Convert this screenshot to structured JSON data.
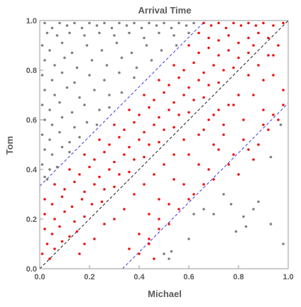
{
  "chart_data": {
    "type": "scatter",
    "title": "Arrival Time",
    "xlabel": "Michael",
    "ylabel": "Tom",
    "xlim": [
      0,
      1
    ],
    "ylim": [
      0,
      1
    ],
    "x_ticks": [
      "0.0",
      "0.2",
      "0.4",
      "0.6",
      "0.8",
      "1.0"
    ],
    "y_ticks": [
      "0.0",
      "0.2",
      "0.4",
      "0.6",
      "0.8",
      "1.0"
    ],
    "grid": false,
    "legend": "none",
    "colors": {
      "gray_points": "#7f7f7f",
      "red_points": "#ee1111",
      "diagonal_line": "#000000",
      "offset_lines": "#2a2ae0",
      "frame": "#999999",
      "text": "#5a5a5a"
    },
    "lines": [
      {
        "style": "dashed",
        "color": "black",
        "x": [
          0,
          1
        ],
        "y": [
          0,
          1
        ]
      },
      {
        "style": "dashed",
        "color": "blue",
        "x": [
          0,
          0.667
        ],
        "y": [
          0.333,
          1
        ]
      },
      {
        "style": "dashed",
        "color": "blue",
        "x": [
          0.333,
          1
        ],
        "y": [
          0,
          0.667
        ]
      }
    ],
    "series": [
      {
        "color": "gray",
        "points": [
          [
            0.02,
            0.99
          ],
          [
            0.05,
            0.97
          ],
          [
            0.08,
            0.99
          ],
          [
            0.11,
            0.98
          ],
          [
            0.14,
            0.99
          ],
          [
            0.17,
            0.97
          ],
          [
            0.2,
            0.99
          ],
          [
            0.23,
            0.98
          ],
          [
            0.26,
            0.99
          ],
          [
            0.29,
            0.97
          ],
          [
            0.32,
            0.99
          ],
          [
            0.35,
            0.98
          ],
          [
            0.38,
            0.99
          ],
          [
            0.41,
            0.97
          ],
          [
            0.44,
            0.99
          ],
          [
            0.47,
            0.98
          ],
          [
            0.5,
            0.99
          ],
          [
            0.53,
            0.97
          ],
          [
            0.56,
            0.99
          ],
          [
            0.59,
            0.98
          ],
          [
            0.62,
            0.99
          ],
          [
            0.03,
            0.95
          ],
          [
            0.07,
            0.94
          ],
          [
            0.12,
            0.95
          ],
          [
            0.18,
            0.94
          ],
          [
            0.24,
            0.95
          ],
          [
            0.3,
            0.94
          ],
          [
            0.36,
            0.95
          ],
          [
            0.42,
            0.93
          ],
          [
            0.48,
            0.95
          ],
          [
            0.54,
            0.94
          ],
          [
            0.6,
            0.95
          ],
          [
            0.01,
            0.9
          ],
          [
            0.04,
            0.88
          ],
          [
            0.09,
            0.91
          ],
          [
            0.13,
            0.87
          ],
          [
            0.19,
            0.9
          ],
          [
            0.25,
            0.88
          ],
          [
            0.31,
            0.91
          ],
          [
            0.37,
            0.87
          ],
          [
            0.43,
            0.9
          ],
          [
            0.49,
            0.88
          ],
          [
            0.55,
            0.9
          ],
          [
            0.02,
            0.84
          ],
          [
            0.06,
            0.82
          ],
          [
            0.1,
            0.85
          ],
          [
            0.15,
            0.81
          ],
          [
            0.21,
            0.84
          ],
          [
            0.27,
            0.82
          ],
          [
            0.33,
            0.85
          ],
          [
            0.39,
            0.81
          ],
          [
            0.45,
            0.84
          ],
          [
            0.01,
            0.78
          ],
          [
            0.05,
            0.76
          ],
          [
            0.09,
            0.79
          ],
          [
            0.14,
            0.75
          ],
          [
            0.2,
            0.78
          ],
          [
            0.26,
            0.76
          ],
          [
            0.32,
            0.79
          ],
          [
            0.38,
            0.77
          ],
          [
            0.02,
            0.72
          ],
          [
            0.06,
            0.7
          ],
          [
            0.11,
            0.73
          ],
          [
            0.16,
            0.69
          ],
          [
            0.22,
            0.72
          ],
          [
            0.28,
            0.7
          ],
          [
            0.33,
            0.71
          ],
          [
            0.01,
            0.66
          ],
          [
            0.04,
            0.64
          ],
          [
            0.08,
            0.67
          ],
          [
            0.13,
            0.63
          ],
          [
            0.18,
            0.66
          ],
          [
            0.24,
            0.64
          ],
          [
            0.28,
            0.65
          ],
          [
            0.02,
            0.6
          ],
          [
            0.05,
            0.58
          ],
          [
            0.09,
            0.61
          ],
          [
            0.14,
            0.57
          ],
          [
            0.19,
            0.59
          ],
          [
            0.23,
            0.58
          ],
          [
            0.01,
            0.54
          ],
          [
            0.04,
            0.52
          ],
          [
            0.08,
            0.55
          ],
          [
            0.12,
            0.51
          ],
          [
            0.16,
            0.53
          ],
          [
            0.02,
            0.48
          ],
          [
            0.05,
            0.46
          ],
          [
            0.09,
            0.49
          ],
          [
            0.12,
            0.47
          ],
          [
            0.01,
            0.42
          ],
          [
            0.04,
            0.4
          ],
          [
            0.07,
            0.41
          ],
          [
            0.02,
            0.37
          ],
          [
            0.03,
            0.36
          ],
          [
            0.52,
            0.04
          ],
          [
            0.53,
            0.07
          ],
          [
            0.5,
            0.06
          ],
          [
            0.6,
            0.12
          ],
          [
            0.62,
            0.22
          ],
          [
            0.66,
            0.24
          ],
          [
            0.7,
            0.22
          ],
          [
            0.74,
            0.3
          ],
          [
            0.77,
            0.26
          ],
          [
            0.82,
            0.21
          ],
          [
            0.79,
            0.15
          ],
          [
            0.83,
            0.17
          ],
          [
            0.86,
            0.24
          ],
          [
            0.93,
            0.18
          ],
          [
            0.93,
            0.45
          ],
          [
            0.97,
            0.58
          ],
          [
            0.98,
            0.1
          ],
          [
            0.88,
            0.27
          ]
        ]
      },
      {
        "color": "red",
        "points": [
          [
            0.66,
            0.99
          ],
          [
            0.69,
            0.98
          ],
          [
            0.72,
            0.99
          ],
          [
            0.75,
            0.97
          ],
          [
            0.78,
            0.99
          ],
          [
            0.81,
            0.98
          ],
          [
            0.84,
            0.99
          ],
          [
            0.87,
            0.98
          ],
          [
            0.9,
            0.99
          ],
          [
            0.94,
            0.98
          ],
          [
            0.98,
            0.99
          ],
          [
            0.64,
            0.95
          ],
          [
            0.68,
            0.93
          ],
          [
            0.72,
            0.92
          ],
          [
            0.76,
            0.94
          ],
          [
            0.8,
            0.91
          ],
          [
            0.84,
            0.93
          ],
          [
            0.88,
            0.95
          ],
          [
            0.92,
            0.93
          ],
          [
            0.6,
            0.9
          ],
          [
            0.64,
            0.87
          ],
          [
            0.68,
            0.89
          ],
          [
            0.72,
            0.86
          ],
          [
            0.76,
            0.88
          ],
          [
            0.8,
            0.85
          ],
          [
            0.84,
            0.87
          ],
          [
            0.54,
            0.82
          ],
          [
            0.58,
            0.8
          ],
          [
            0.62,
            0.83
          ],
          [
            0.66,
            0.79
          ],
          [
            0.7,
            0.82
          ],
          [
            0.74,
            0.8
          ],
          [
            0.78,
            0.81
          ],
          [
            0.48,
            0.76
          ],
          [
            0.52,
            0.74
          ],
          [
            0.56,
            0.77
          ],
          [
            0.6,
            0.73
          ],
          [
            0.64,
            0.76
          ],
          [
            0.68,
            0.74
          ],
          [
            0.72,
            0.75
          ],
          [
            0.42,
            0.7
          ],
          [
            0.46,
            0.68
          ],
          [
            0.5,
            0.71
          ],
          [
            0.54,
            0.67
          ],
          [
            0.58,
            0.7
          ],
          [
            0.62,
            0.68
          ],
          [
            0.66,
            0.69
          ],
          [
            0.36,
            0.64
          ],
          [
            0.4,
            0.62
          ],
          [
            0.44,
            0.65
          ],
          [
            0.48,
            0.61
          ],
          [
            0.52,
            0.64
          ],
          [
            0.56,
            0.62
          ],
          [
            0.6,
            0.63
          ],
          [
            0.3,
            0.58
          ],
          [
            0.34,
            0.56
          ],
          [
            0.38,
            0.59
          ],
          [
            0.42,
            0.55
          ],
          [
            0.46,
            0.58
          ],
          [
            0.5,
            0.56
          ],
          [
            0.54,
            0.57
          ],
          [
            0.24,
            0.52
          ],
          [
            0.28,
            0.5
          ],
          [
            0.32,
            0.53
          ],
          [
            0.36,
            0.49
          ],
          [
            0.4,
            0.52
          ],
          [
            0.44,
            0.5
          ],
          [
            0.48,
            0.51
          ],
          [
            0.18,
            0.46
          ],
          [
            0.22,
            0.44
          ],
          [
            0.26,
            0.47
          ],
          [
            0.3,
            0.43
          ],
          [
            0.34,
            0.46
          ],
          [
            0.38,
            0.44
          ],
          [
            0.42,
            0.45
          ],
          [
            0.12,
            0.4
          ],
          [
            0.16,
            0.38
          ],
          [
            0.2,
            0.41
          ],
          [
            0.24,
            0.37
          ],
          [
            0.28,
            0.4
          ],
          [
            0.32,
            0.38
          ],
          [
            0.36,
            0.39
          ],
          [
            0.06,
            0.34
          ],
          [
            0.1,
            0.32
          ],
          [
            0.14,
            0.35
          ],
          [
            0.18,
            0.31
          ],
          [
            0.22,
            0.34
          ],
          [
            0.26,
            0.32
          ],
          [
            0.3,
            0.33
          ],
          [
            0.02,
            0.28
          ],
          [
            0.05,
            0.26
          ],
          [
            0.09,
            0.29
          ],
          [
            0.13,
            0.25
          ],
          [
            0.17,
            0.28
          ],
          [
            0.21,
            0.26
          ],
          [
            0.25,
            0.27
          ],
          [
            0.02,
            0.22
          ],
          [
            0.06,
            0.2
          ],
          [
            0.1,
            0.23
          ],
          [
            0.14,
            0.19
          ],
          [
            0.18,
            0.21
          ],
          [
            0.02,
            0.16
          ],
          [
            0.05,
            0.14
          ],
          [
            0.08,
            0.17
          ],
          [
            0.12,
            0.13
          ],
          [
            0.15,
            0.15
          ],
          [
            0.03,
            0.1
          ],
          [
            0.06,
            0.08
          ],
          [
            0.09,
            0.11
          ],
          [
            0.01,
            0.06
          ],
          [
            0.04,
            0.04
          ],
          [
            0.7,
            0.62
          ],
          [
            0.74,
            0.58
          ],
          [
            0.78,
            0.66
          ],
          [
            0.82,
            0.6
          ],
          [
            0.86,
            0.7
          ],
          [
            0.9,
            0.64
          ],
          [
            0.94,
            0.78
          ],
          [
            0.98,
            0.72
          ],
          [
            0.66,
            0.56
          ],
          [
            0.7,
            0.5
          ],
          [
            0.74,
            0.54
          ],
          [
            0.78,
            0.46
          ],
          [
            0.82,
            0.52
          ],
          [
            0.86,
            0.44
          ],
          [
            0.9,
            0.58
          ],
          [
            0.94,
            0.62
          ],
          [
            0.98,
            0.66
          ],
          [
            0.6,
            0.46
          ],
          [
            0.64,
            0.42
          ],
          [
            0.68,
            0.4
          ],
          [
            0.72,
            0.48
          ],
          [
            0.76,
            0.42
          ],
          [
            0.8,
            0.38
          ],
          [
            0.84,
            0.48
          ],
          [
            0.88,
            0.5
          ],
          [
            0.92,
            0.56
          ],
          [
            0.96,
            0.6
          ],
          [
            0.54,
            0.36
          ],
          [
            0.58,
            0.34
          ],
          [
            0.62,
            0.3
          ],
          [
            0.66,
            0.34
          ],
          [
            0.7,
            0.36
          ],
          [
            0.48,
            0.28
          ],
          [
            0.52,
            0.26
          ],
          [
            0.56,
            0.24
          ],
          [
            0.6,
            0.28
          ],
          [
            0.44,
            0.22
          ],
          [
            0.48,
            0.2
          ],
          [
            0.52,
            0.18
          ],
          [
            0.4,
            0.14
          ],
          [
            0.44,
            0.12
          ],
          [
            0.48,
            0.16
          ],
          [
            0.36,
            0.08
          ],
          [
            0.4,
            0.06
          ],
          [
            0.44,
            0.1
          ],
          [
            0.46,
            0.04
          ],
          [
            0.84,
            0.78
          ],
          [
            0.88,
            0.82
          ],
          [
            0.92,
            0.86
          ],
          [
            0.96,
            0.9
          ],
          [
            0.86,
            0.9
          ],
          [
            0.9,
            0.76
          ],
          [
            0.94,
            0.86
          ],
          [
            0.8,
            0.7
          ],
          [
            0.76,
            0.66
          ],
          [
            0.72,
            0.64
          ],
          [
            0.68,
            0.6
          ],
          [
            0.64,
            0.54
          ],
          [
            0.58,
            0.52
          ],
          [
            0.54,
            0.46
          ],
          [
            0.5,
            0.42
          ],
          [
            0.46,
            0.38
          ],
          [
            0.42,
            0.34
          ],
          [
            0.38,
            0.3
          ],
          [
            0.34,
            0.24
          ],
          [
            0.3,
            0.2
          ],
          [
            0.26,
            0.18
          ],
          [
            0.22,
            0.12
          ],
          [
            0.18,
            0.1
          ],
          [
            0.16,
            0.06
          ]
        ]
      }
    ]
  }
}
